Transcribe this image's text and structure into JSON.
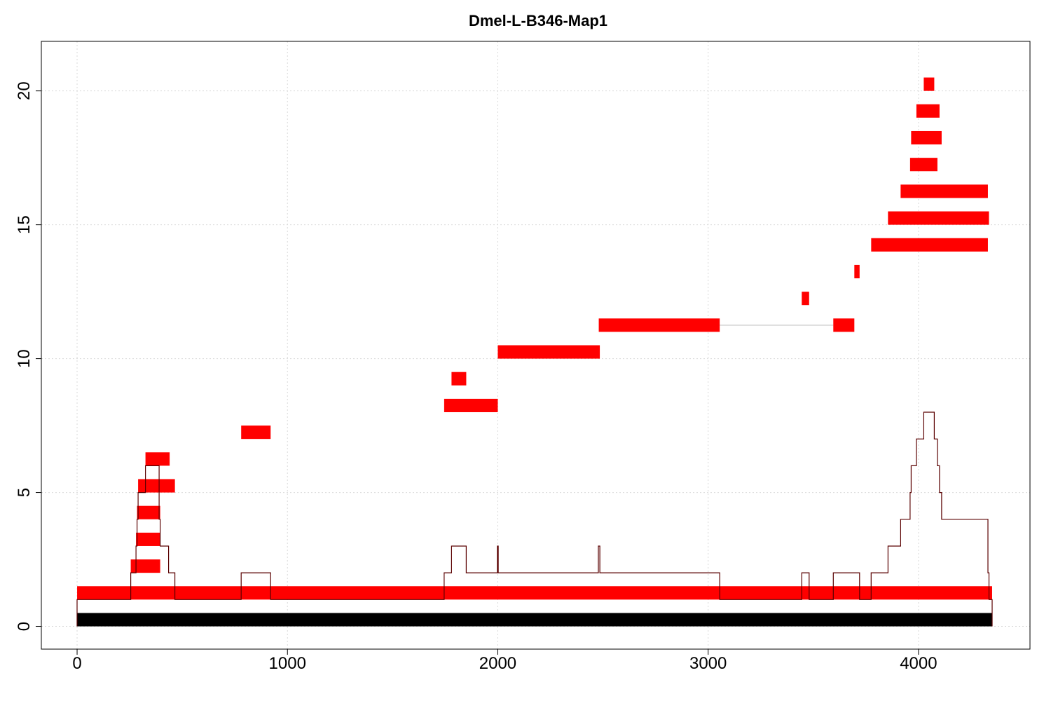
{
  "chart_data": {
    "type": "bar",
    "title": "Dmel-L-B346-Map1",
    "xlabel": "",
    "ylabel": "",
    "xlim": [
      -170,
      4530
    ],
    "ylim": [
      -0.85,
      21.85
    ],
    "x_ticks": [
      0,
      1000,
      2000,
      3000,
      4000
    ],
    "y_ticks": [
      0,
      5,
      10,
      15,
      20
    ],
    "grid": true,
    "colors": {
      "reference": "#000000",
      "fragment": "#ff0000",
      "coverage": "#5a0000",
      "connector": "#dddddd"
    },
    "reference_bar": {
      "start": 0,
      "end": 4350,
      "y": 0
    },
    "fragments": [
      {
        "start": 0,
        "end": 4350,
        "y": 1
      },
      {
        "start": 255,
        "end": 395,
        "y": 2
      },
      {
        "start": 280,
        "end": 395,
        "y": 3
      },
      {
        "start": 285,
        "end": 395,
        "y": 4
      },
      {
        "start": 290,
        "end": 465,
        "y": 5
      },
      {
        "start": 325,
        "end": 440,
        "y": 6
      },
      {
        "start": 780,
        "end": 920,
        "y": 7
      },
      {
        "start": 1745,
        "end": 2000,
        "y": 8
      },
      {
        "start": 1780,
        "end": 1850,
        "y": 9
      },
      {
        "start": 2000,
        "end": 2485,
        "y": 10
      },
      {
        "start": 2480,
        "end": 3055,
        "y": 11
      },
      {
        "start": 3595,
        "end": 3695,
        "y": 11
      },
      {
        "start": 3445,
        "end": 3480,
        "y": 12
      },
      {
        "start": 3695,
        "end": 3720,
        "y": 13
      },
      {
        "start": 3775,
        "end": 4330,
        "y": 14
      },
      {
        "start": 3855,
        "end": 4335,
        "y": 15
      },
      {
        "start": 3915,
        "end": 4330,
        "y": 16
      },
      {
        "start": 3960,
        "end": 4090,
        "y": 17
      },
      {
        "start": 3965,
        "end": 4110,
        "y": 18
      },
      {
        "start": 3990,
        "end": 4100,
        "y": 19
      },
      {
        "start": 4025,
        "end": 4075,
        "y": 20
      }
    ],
    "connectors": [
      {
        "x1": 3055,
        "x2": 3595,
        "y": 11
      }
    ],
    "coverage": [
      [
        0,
        0
      ],
      [
        0,
        1
      ],
      [
        255,
        1
      ],
      [
        255,
        2
      ],
      [
        280,
        2
      ],
      [
        280,
        3
      ],
      [
        285,
        3
      ],
      [
        285,
        4
      ],
      [
        290,
        4
      ],
      [
        290,
        5
      ],
      [
        325,
        5
      ],
      [
        325,
        6
      ],
      [
        390,
        6
      ],
      [
        390,
        4
      ],
      [
        395,
        4
      ],
      [
        395,
        3
      ],
      [
        435,
        3
      ],
      [
        435,
        2
      ],
      [
        465,
        2
      ],
      [
        465,
        1
      ],
      [
        780,
        1
      ],
      [
        780,
        2
      ],
      [
        920,
        2
      ],
      [
        920,
        1
      ],
      [
        1745,
        1
      ],
      [
        1745,
        2
      ],
      [
        1780,
        2
      ],
      [
        1780,
        3
      ],
      [
        1850,
        3
      ],
      [
        1850,
        2
      ],
      [
        1998,
        2
      ],
      [
        1998,
        3
      ],
      [
        2002,
        3
      ],
      [
        2002,
        2
      ],
      [
        2478,
        2
      ],
      [
        2478,
        3
      ],
      [
        2485,
        3
      ],
      [
        2485,
        2
      ],
      [
        3055,
        2
      ],
      [
        3055,
        1
      ],
      [
        3445,
        1
      ],
      [
        3445,
        2
      ],
      [
        3480,
        2
      ],
      [
        3480,
        1
      ],
      [
        3595,
        1
      ],
      [
        3595,
        2
      ],
      [
        3720,
        2
      ],
      [
        3720,
        1
      ],
      [
        3775,
        1
      ],
      [
        3775,
        2
      ],
      [
        3855,
        2
      ],
      [
        3855,
        3
      ],
      [
        3915,
        3
      ],
      [
        3915,
        4
      ],
      [
        3960,
        4
      ],
      [
        3960,
        5
      ],
      [
        3965,
        5
      ],
      [
        3965,
        6
      ],
      [
        3990,
        6
      ],
      [
        3990,
        7
      ],
      [
        4025,
        7
      ],
      [
        4025,
        8
      ],
      [
        4075,
        8
      ],
      [
        4075,
        7
      ],
      [
        4090,
        7
      ],
      [
        4090,
        6
      ],
      [
        4100,
        6
      ],
      [
        4100,
        5
      ],
      [
        4110,
        5
      ],
      [
        4110,
        4
      ],
      [
        4330,
        4
      ],
      [
        4330,
        2
      ],
      [
        4335,
        2
      ],
      [
        4335,
        1
      ],
      [
        4350,
        1
      ],
      [
        4350,
        0
      ]
    ]
  }
}
